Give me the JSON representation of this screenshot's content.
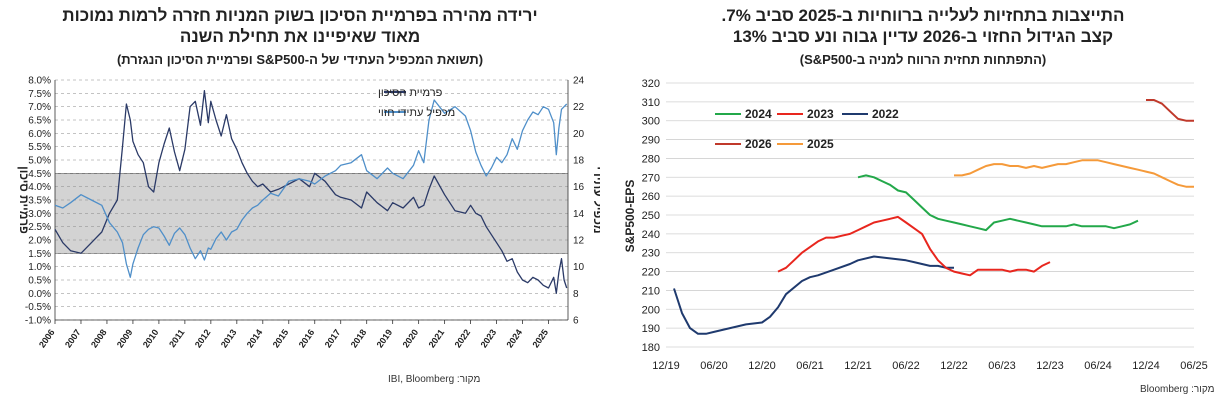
{
  "chart_data": [
    {
      "type": "line",
      "title": "ירידה מהירה בפרמיית הסיכון בשוק המניות חזרה לרמות נמוכות",
      "title_line2": "מאוד שאיפיינו את תחילת השנה",
      "subtitle": "(תשואת המכפיל העתידי של ה-S&P500 ופרמיית הסיכון הנגזרת)",
      "source": "מקור: IBI, Bloomberg",
      "ylabel_left": "פרמיית סיכון",
      "ylabel_right": "מכפיל עתידי",
      "ylim_left": [
        -1,
        8
      ],
      "ylim_right": [
        6,
        24
      ],
      "yticks_left": [
        "8.0%",
        "7.5%",
        "7.0%",
        "6.5%",
        "6.0%",
        "5.5%",
        "5.0%",
        "4.5%",
        "4.0%",
        "3.5%",
        "3.0%",
        "2.5%",
        "2.0%",
        "1.5%",
        "1.0%",
        "0.5%",
        "0.0%",
        "-0.5%",
        "-1.0%"
      ],
      "yticks_right": [
        "24",
        "22",
        "20",
        "18",
        "16",
        "14",
        "12",
        "10",
        "8",
        "6"
      ],
      "xticks": [
        "2006",
        "2007",
        "2008",
        "2009",
        "2010",
        "2011",
        "2012",
        "2013",
        "2014",
        "2015",
        "2016",
        "2017",
        "2018",
        "2019",
        "2020",
        "2021",
        "2022",
        "2023",
        "2024",
        "2025"
      ],
      "xlim": [
        2006,
        2025.75
      ],
      "band": [
        1.5,
        4.5
      ],
      "legend_position": "top-center",
      "series": [
        {
          "name": "פרמיית הסיכון",
          "axis": "left",
          "color": "#2b3a67",
          "x": [
            2006.0,
            2006.3,
            2006.6,
            2007.0,
            2007.4,
            2007.8,
            2008.1,
            2008.4,
            2008.6,
            2008.75,
            2008.9,
            2009.0,
            2009.2,
            2009.4,
            2009.6,
            2009.8,
            2010.0,
            2010.2,
            2010.4,
            2010.6,
            2010.8,
            2011.0,
            2011.2,
            2011.4,
            2011.6,
            2011.75,
            2011.9,
            2012.0,
            2012.2,
            2012.4,
            2012.6,
            2012.8,
            2013.0,
            2013.2,
            2013.4,
            2013.6,
            2013.8,
            2014.0,
            2014.3,
            2014.6,
            2015.0,
            2015.4,
            2015.8,
            2016.0,
            2016.4,
            2016.8,
            2017.0,
            2017.4,
            2017.8,
            2018.0,
            2018.4,
            2018.8,
            2019.0,
            2019.4,
            2019.8,
            2020.0,
            2020.2,
            2020.4,
            2020.6,
            2021.0,
            2021.4,
            2021.8,
            2022.0,
            2022.2,
            2022.4,
            2022.6,
            2022.8,
            2023.0,
            2023.2,
            2023.4,
            2023.6,
            2023.8,
            2024.0,
            2024.2,
            2024.4,
            2024.6,
            2024.8,
            2025.0,
            2025.2,
            2025.3,
            2025.4,
            2025.5,
            2025.6,
            2025.7
          ],
          "values": [
            2.4,
            1.9,
            1.6,
            1.5,
            1.9,
            2.3,
            3.0,
            3.5,
            5.5,
            7.1,
            6.5,
            5.7,
            5.2,
            4.9,
            4.0,
            3.8,
            4.9,
            5.6,
            6.2,
            5.3,
            4.6,
            5.4,
            7.0,
            7.2,
            6.3,
            7.6,
            6.4,
            7.2,
            6.5,
            5.9,
            6.7,
            5.8,
            5.4,
            4.9,
            4.5,
            4.2,
            4.0,
            4.1,
            3.8,
            3.9,
            4.1,
            4.3,
            4.0,
            4.5,
            4.2,
            3.7,
            3.6,
            3.5,
            3.2,
            3.8,
            3.4,
            3.1,
            3.4,
            3.2,
            3.6,
            3.2,
            3.3,
            3.9,
            4.4,
            3.7,
            3.1,
            3.0,
            3.3,
            3.0,
            2.9,
            2.5,
            2.2,
            1.9,
            1.6,
            1.2,
            1.3,
            0.8,
            0.5,
            0.4,
            0.6,
            0.5,
            0.3,
            0.2,
            0.6,
            0.0,
            0.8,
            1.3,
            0.5,
            0.2
          ]
        },
        {
          "name": "מכפיל עתידי חזוי",
          "axis": "right",
          "color": "#4f8fc9",
          "x": [
            2006.0,
            2006.3,
            2006.6,
            2007.0,
            2007.4,
            2007.8,
            2008.1,
            2008.4,
            2008.6,
            2008.75,
            2008.9,
            2009.0,
            2009.2,
            2009.4,
            2009.6,
            2009.8,
            2010.0,
            2010.2,
            2010.4,
            2010.6,
            2010.8,
            2011.0,
            2011.2,
            2011.4,
            2011.6,
            2011.75,
            2011.9,
            2012.0,
            2012.2,
            2012.4,
            2012.6,
            2012.8,
            2013.0,
            2013.2,
            2013.4,
            2013.6,
            2013.8,
            2014.0,
            2014.3,
            2014.6,
            2015.0,
            2015.4,
            2015.8,
            2016.0,
            2016.4,
            2016.8,
            2017.0,
            2017.4,
            2017.8,
            2018.0,
            2018.4,
            2018.8,
            2019.0,
            2019.4,
            2019.8,
            2020.0,
            2020.2,
            2020.4,
            2020.6,
            2021.0,
            2021.4,
            2021.8,
            2022.0,
            2022.2,
            2022.4,
            2022.6,
            2022.8,
            2023.0,
            2023.2,
            2023.4,
            2023.6,
            2023.8,
            2024.0,
            2024.2,
            2024.4,
            2024.6,
            2024.8,
            2025.0,
            2025.2,
            2025.3,
            2025.4,
            2025.5,
            2025.6,
            2025.7
          ],
          "values": [
            14.6,
            14.4,
            14.8,
            15.4,
            15.0,
            14.6,
            13.3,
            12.6,
            11.8,
            10.2,
            9.2,
            10.2,
            11.4,
            12.4,
            12.8,
            13.0,
            12.9,
            12.3,
            11.6,
            12.5,
            12.9,
            12.4,
            11.4,
            10.6,
            11.2,
            10.5,
            11.4,
            11.3,
            12.1,
            12.6,
            12.0,
            12.6,
            12.8,
            13.5,
            14.0,
            14.4,
            14.6,
            15.0,
            15.5,
            15.3,
            16.4,
            16.6,
            16.4,
            16.2,
            16.8,
            17.2,
            17.6,
            17.8,
            18.4,
            17.2,
            16.6,
            17.4,
            17.0,
            16.6,
            17.6,
            18.7,
            17.8,
            21.0,
            22.5,
            21.5,
            22.0,
            21.3,
            20.2,
            18.6,
            17.6,
            16.8,
            17.4,
            18.2,
            17.8,
            18.4,
            19.6,
            18.8,
            20.2,
            21.0,
            21.6,
            21.4,
            22.0,
            21.8,
            20.8,
            18.4,
            20.4,
            21.8,
            22.0,
            22.2
          ]
        }
      ]
    },
    {
      "type": "line",
      "title": "התייצבות בתחזיות לעלייה ברווחיות ב-2025 סביב 7%.",
      "title_line2": "קצב הגידול החזוי ב-2026 עדיין גבוה ונע סביב 13%",
      "subtitle": "(התפתחות תחזית הרווח למניה ב-S&P500)",
      "source": "מקור: Bloomberg",
      "ylabel": "S&P500-EPS",
      "ylim": [
        180,
        320
      ],
      "yticks": [
        "320",
        "310",
        "300",
        "290",
        "280",
        "270",
        "260",
        "250",
        "240",
        "230",
        "220",
        "210",
        "200",
        "190",
        "180"
      ],
      "xticks": [
        "12/19",
        "06/20",
        "12/20",
        "06/21",
        "12/21",
        "06/22",
        "12/22",
        "06/23",
        "12/23",
        "06/24",
        "12/24",
        "06/25"
      ],
      "xlim": [
        0,
        66
      ],
      "x_unit": "months since 12/19",
      "series": [
        {
          "name": "2022",
          "color": "#1f3a6e",
          "x": [
            1,
            2,
            3,
            4,
            5,
            6,
            8,
            10,
            12,
            13,
            14,
            15,
            17,
            18,
            19,
            21,
            23,
            24,
            26,
            28,
            30,
            31,
            32,
            33,
            34,
            35,
            36
          ],
          "values": [
            211,
            198,
            190,
            187,
            187,
            188,
            190,
            192,
            193,
            196,
            201,
            208,
            215,
            217,
            218,
            221,
            224,
            226,
            228,
            227,
            226,
            225,
            224,
            223,
            223,
            222,
            222
          ]
        },
        {
          "name": "2023",
          "color": "#e8261e",
          "x": [
            14,
            15,
            16,
            17,
            18,
            19,
            20,
            21,
            22,
            23,
            24,
            25,
            26,
            27,
            28,
            29,
            30,
            31,
            32,
            33,
            34,
            35,
            36,
            37,
            38,
            39,
            40,
            41,
            42,
            43,
            44,
            45,
            46,
            47,
            48
          ],
          "values": [
            220,
            222,
            226,
            230,
            233,
            236,
            238,
            238,
            239,
            240,
            242,
            244,
            246,
            247,
            248,
            249,
            246,
            243,
            240,
            232,
            226,
            222,
            220,
            219,
            218,
            221,
            221,
            221,
            221,
            220,
            221,
            221,
            220,
            223,
            225
          ]
        },
        {
          "name": "2024",
          "color": "#23a84a",
          "x": [
            24,
            25,
            26,
            27,
            28,
            29,
            30,
            31,
            32,
            33,
            34,
            35,
            36,
            37,
            38,
            39,
            40,
            41,
            42,
            43,
            44,
            45,
            46,
            47,
            48,
            49,
            50,
            51,
            52,
            53,
            54,
            55,
            56,
            57,
            58,
            59
          ],
          "values": [
            270,
            271,
            270,
            268,
            266,
            263,
            262,
            258,
            254,
            250,
            248,
            247,
            246,
            245,
            244,
            243,
            242,
            246,
            247,
            248,
            247,
            246,
            245,
            244,
            244,
            244,
            244,
            245,
            244,
            244,
            244,
            244,
            243,
            244,
            245,
            247
          ]
        },
        {
          "name": "2025",
          "color": "#f59a3a",
          "x": [
            36,
            37,
            38,
            39,
            40,
            41,
            42,
            43,
            44,
            45,
            46,
            47,
            48,
            49,
            50,
            51,
            52,
            53,
            54,
            55,
            56,
            57,
            58,
            59,
            60,
            61,
            62,
            63,
            64,
            65,
            66
          ],
          "values": [
            271,
            271,
            272,
            274,
            276,
            277,
            277,
            276,
            276,
            275,
            276,
            275,
            276,
            277,
            277,
            278,
            279,
            279,
            279,
            278,
            277,
            276,
            275,
            274,
            273,
            272,
            270,
            268,
            266,
            265,
            265
          ]
        },
        {
          "name": "2026",
          "color": "#c0392b",
          "x": [
            60,
            61,
            62,
            63,
            64,
            65,
            66
          ],
          "values": [
            311,
            311,
            309,
            305,
            301,
            300,
            300
          ]
        }
      ]
    }
  ]
}
